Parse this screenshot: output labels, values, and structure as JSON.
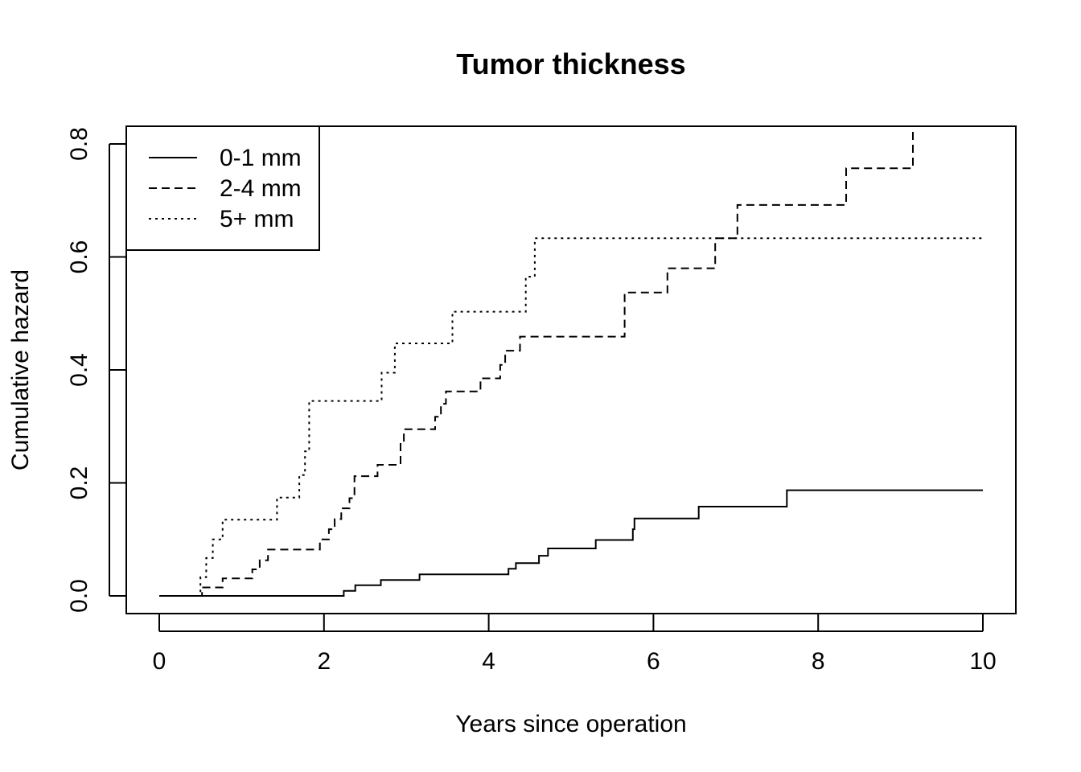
{
  "chart_data": {
    "type": "line",
    "step": true,
    "title": "Tumor thickness",
    "xlabel": "Years since operation",
    "ylabel": "Cumulative hazard",
    "xlim": [
      0,
      10
    ],
    "ylim": [
      0,
      0.8
    ],
    "x_ticks": [
      0,
      2,
      4,
      6,
      8,
      10
    ],
    "x_tick_labels": [
      "0",
      "2",
      "4",
      "6",
      "8",
      "10"
    ],
    "y_ticks": [
      0.0,
      0.2,
      0.4,
      0.6,
      0.8
    ],
    "y_tick_labels": [
      "0.0",
      "0.2",
      "0.4",
      "0.6",
      "0.8"
    ],
    "grid": false,
    "legend_position": "top-left",
    "series": [
      {
        "name": "0-1 mm",
        "line_style": "solid",
        "x": [
          0,
          2.24,
          2.38,
          2.69,
          3.16,
          4.24,
          4.33,
          4.61,
          4.72,
          5.3,
          5.75,
          5.77,
          6.55,
          7.62,
          10
        ],
        "y": [
          0,
          0.009,
          0.019,
          0.028,
          0.038,
          0.048,
          0.058,
          0.071,
          0.084,
          0.099,
          0.118,
          0.137,
          0.158,
          0.187,
          0.187
        ]
      },
      {
        "name": "2-4 mm",
        "line_style": "dashed",
        "x": [
          0,
          0.52,
          0.77,
          1.0,
          1.13,
          1.22,
          1.32,
          1.95,
          2.06,
          2.13,
          2.21,
          2.31,
          2.37,
          2.65,
          2.72,
          2.93,
          2.97,
          3.35,
          3.42,
          3.48,
          3.9,
          4.14,
          4.2,
          4.38,
          5.65,
          6.17,
          6.75,
          7.02,
          8.34,
          9.15,
          9.3
        ],
        "y": [
          0,
          0.015,
          0.031,
          0.031,
          0.047,
          0.063,
          0.082,
          0.1,
          0.118,
          0.136,
          0.155,
          0.173,
          0.212,
          0.232,
          0.232,
          0.273,
          0.295,
          0.317,
          0.34,
          0.362,
          0.385,
          0.409,
          0.434,
          0.459,
          0.537,
          0.58,
          0.633,
          0.692,
          0.757,
          0.835,
          0.835
        ]
      },
      {
        "name": "5+ mm",
        "line_style": "dotted",
        "x": [
          0,
          0.5,
          0.57,
          0.65,
          0.77,
          1.43,
          1.7,
          1.77,
          1.82,
          2.7,
          2.86,
          3.56,
          4.45,
          4.56,
          10
        ],
        "y": [
          0,
          0.033,
          0.067,
          0.1,
          0.135,
          0.174,
          0.214,
          0.256,
          0.345,
          0.395,
          0.447,
          0.503,
          0.565,
          0.633,
          0.633
        ]
      }
    ]
  }
}
